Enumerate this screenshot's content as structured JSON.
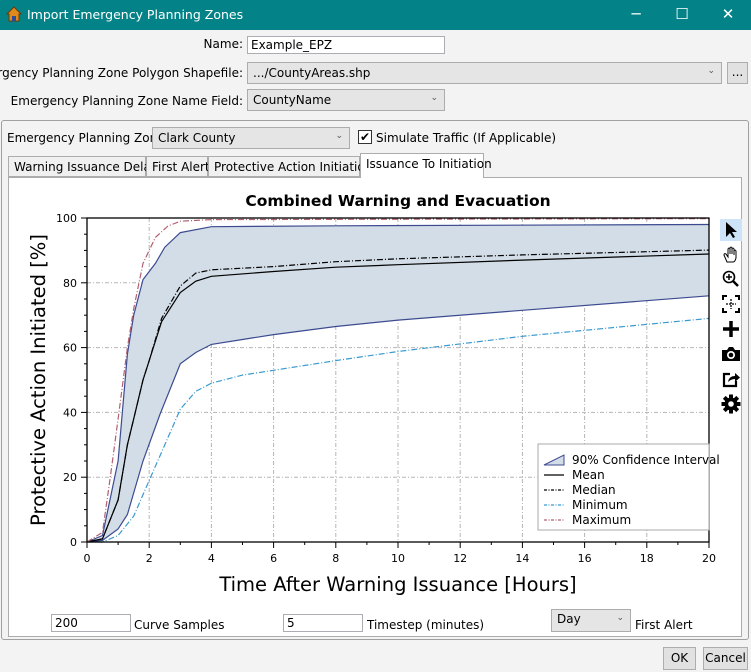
{
  "window": {
    "title": "Import Emergency Planning Zones",
    "minimize": "─",
    "maximize": "☐",
    "close": "✕"
  },
  "form": {
    "name_label": "Name:",
    "name_value": "Example_EPZ",
    "shapefile_label": "Emergency Planning Zone Polygon Shapefile:",
    "shapefile_value": ".../CountyAreas.shp",
    "browse_label": "...",
    "namefield_label": "Emergency Planning Zone Name Field:",
    "namefield_value": "CountyName"
  },
  "group": {
    "epz_label": "Emergency Planning Zone:",
    "epz_value": "Clark County",
    "simulate_traffic_label": "Simulate Traffic (If Applicable)",
    "simulate_traffic_checked": true,
    "tabs": [
      {
        "label": "Warning Issuance Delay"
      },
      {
        "label": "First Alert"
      },
      {
        "label": "Protective Action Initiation"
      },
      {
        "label": "Issuance To Initiation",
        "active": true
      }
    ],
    "curve_samples_value": "200",
    "curve_samples_label": "Curve Samples",
    "timestep_value": "5",
    "timestep_label": "Timestep (minutes)",
    "first_alert_value": "Day",
    "first_alert_label": "First Alert"
  },
  "toolbar": [
    "pointer-icon",
    "pan-hand-icon",
    "zoom-in-icon",
    "fit-extents-icon",
    "add-icon",
    "camera-icon",
    "export-icon",
    "settings-gear-icon"
  ],
  "buttons": {
    "ok": "OK",
    "cancel": "Cancel"
  },
  "chart_data": {
    "type": "line",
    "title": "Combined Warning and Evacuation",
    "xlabel": "Time After Warning Issuance [Hours]",
    "ylabel": "Protective Action Initiated [%]",
    "xlim": [
      0,
      20
    ],
    "ylim": [
      0,
      100
    ],
    "xticks": [
      0,
      2,
      4,
      6,
      8,
      10,
      12,
      14,
      16,
      18,
      20
    ],
    "yticks": [
      0,
      20,
      40,
      60,
      80,
      100
    ],
    "grid": true,
    "legend_position": "bottom-right",
    "band": {
      "name": "90% Confidence Interval",
      "color": "#d3dde7",
      "edge": "#3c4b90",
      "upper": [
        [
          0,
          0
        ],
        [
          0.5,
          2
        ],
        [
          1,
          25
        ],
        [
          1.3,
          58
        ],
        [
          1.5,
          70
        ],
        [
          1.8,
          81
        ],
        [
          2.2,
          86
        ],
        [
          2.5,
          91
        ],
        [
          3,
          95.5
        ],
        [
          4,
          97.3
        ],
        [
          8,
          97.6
        ],
        [
          20,
          98
        ]
      ],
      "lower": [
        [
          0,
          0
        ],
        [
          0.5,
          0.5
        ],
        [
          1,
          4
        ],
        [
          1.3,
          8.5
        ],
        [
          1.8,
          25
        ],
        [
          2.35,
          39.5
        ],
        [
          3,
          55
        ],
        [
          3.5,
          58.5
        ],
        [
          4,
          61
        ],
        [
          5,
          62.5
        ],
        [
          6,
          64
        ],
        [
          8,
          66.5
        ],
        [
          10,
          68.5
        ],
        [
          14,
          71.5
        ],
        [
          20,
          76
        ]
      ]
    },
    "series": [
      {
        "name": "Mean",
        "color": "#000000",
        "dash": "",
        "points": [
          [
            0,
            0
          ],
          [
            0.5,
            1
          ],
          [
            1,
            13
          ],
          [
            1.3,
            30
          ],
          [
            1.5,
            38
          ],
          [
            1.8,
            50
          ],
          [
            2,
            56
          ],
          [
            2.4,
            68
          ],
          [
            3,
            77
          ],
          [
            3.5,
            80.5
          ],
          [
            4,
            82
          ],
          [
            6,
            83.5
          ],
          [
            8,
            84.8
          ],
          [
            10,
            85.6
          ],
          [
            14,
            87
          ],
          [
            20,
            88.9
          ]
        ]
      },
      {
        "name": "Median",
        "color": "#000000",
        "dash": "6,2,1,2",
        "points": [
          [
            0,
            0
          ],
          [
            0.5,
            1
          ],
          [
            1,
            13
          ],
          [
            1.3,
            30
          ],
          [
            1.5,
            38
          ],
          [
            1.8,
            50
          ],
          [
            2,
            56
          ],
          [
            2.4,
            69
          ],
          [
            3,
            79
          ],
          [
            3.5,
            83
          ],
          [
            4,
            84
          ],
          [
            6,
            85
          ],
          [
            8,
            86.5
          ],
          [
            10,
            87.4
          ],
          [
            14,
            88.6
          ],
          [
            20,
            90.1
          ]
        ]
      },
      {
        "name": "Minimum",
        "color": "#3a9ad0",
        "dash": "6,2,1,2",
        "points": [
          [
            0,
            0
          ],
          [
            0.5,
            0
          ],
          [
            1,
            2
          ],
          [
            1.5,
            8
          ],
          [
            2,
            19
          ],
          [
            2.5,
            30
          ],
          [
            3,
            41
          ],
          [
            3.5,
            46.5
          ],
          [
            4,
            49
          ],
          [
            5,
            51.5
          ],
          [
            6,
            53
          ],
          [
            8,
            56
          ],
          [
            10,
            58.8
          ],
          [
            14,
            63.5
          ],
          [
            20,
            69
          ]
        ]
      },
      {
        "name": "Maximum",
        "color": "#b06070",
        "dash": "6,2,1,2",
        "points": [
          [
            0,
            0
          ],
          [
            0.5,
            3
          ],
          [
            0.75,
            20
          ],
          [
            1,
            38
          ],
          [
            1.3,
            60
          ],
          [
            1.5,
            72
          ],
          [
            1.8,
            86
          ],
          [
            2.2,
            94
          ],
          [
            2.6,
            97.5
          ],
          [
            3,
            99
          ],
          [
            4,
            99.5
          ],
          [
            20,
            99.8
          ]
        ]
      }
    ]
  }
}
